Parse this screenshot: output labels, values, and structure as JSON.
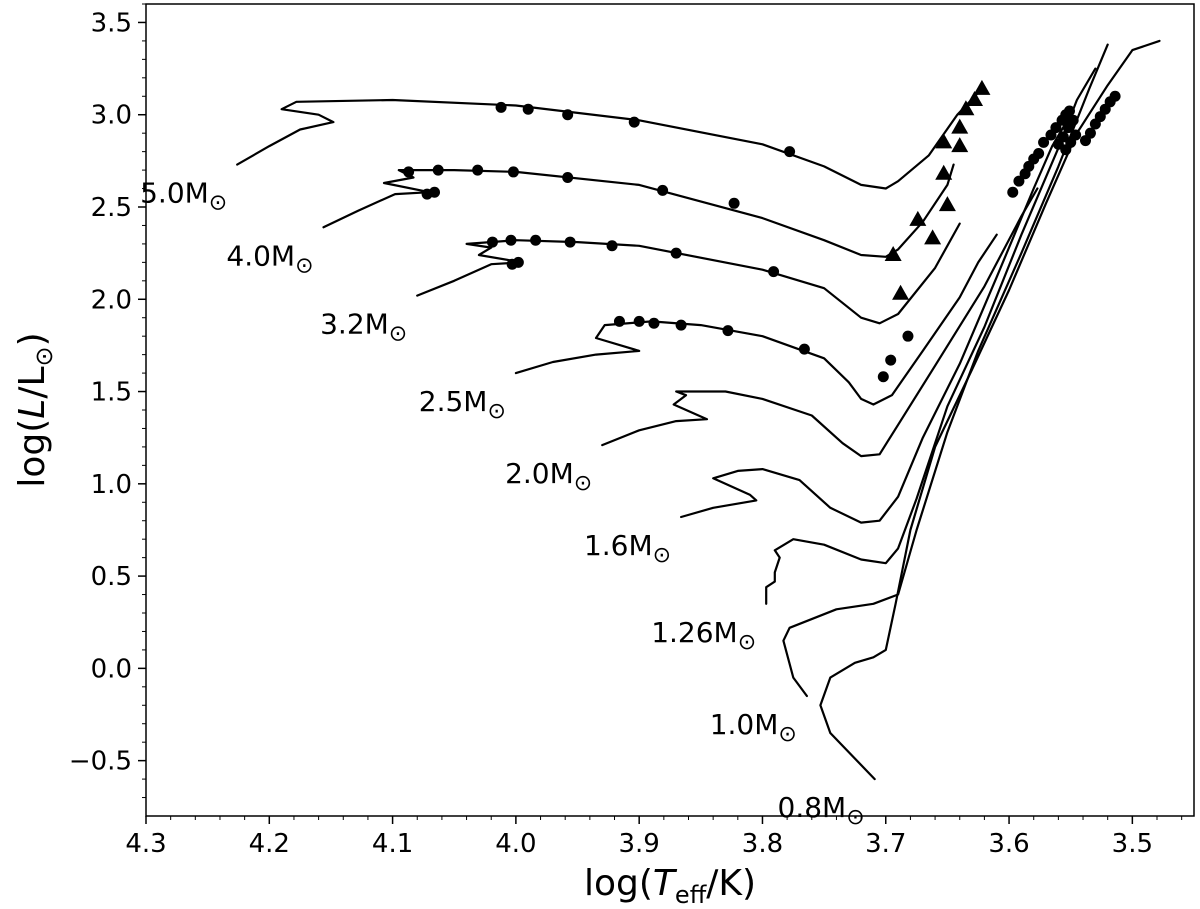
{
  "chart_data": {
    "type": "line",
    "xlabel": {
      "pre": "log(",
      "italic": "T",
      "sub": "eff",
      "post": "/K)"
    },
    "ylabel": {
      "pre": "log(",
      "italic": "L",
      "post": "/L",
      "sun": "⊙",
      "close": ")"
    },
    "xlim": [
      4.3,
      3.45
    ],
    "ylim": [
      -0.8,
      3.6
    ],
    "x_inverted": true,
    "grid": false,
    "legend": "none",
    "x_ticks": [
      "4.3",
      "4.2",
      "4.1",
      "4.0",
      "3.9",
      "3.8",
      "3.7",
      "3.6",
      "3.5"
    ],
    "y_ticks": [
      "−0.5",
      "0.0",
      "0.5",
      "1.0",
      "1.5",
      "2.0",
      "2.5",
      "3.0",
      "3.5"
    ],
    "sun_symbol": "⊙",
    "series": [
      {
        "name": "5.0M⊙",
        "mass_text": "5.0M",
        "points": [
          [
            4.226,
            2.73
          ],
          [
            4.2,
            2.83
          ],
          [
            4.175,
            2.92
          ],
          [
            4.148,
            2.96
          ],
          [
            4.16,
            3.0
          ],
          [
            4.19,
            3.03
          ],
          [
            4.178,
            3.07
          ],
          [
            4.1,
            3.08
          ],
          [
            4.0,
            3.05
          ],
          [
            3.9,
            2.97
          ],
          [
            3.8,
            2.84
          ],
          [
            3.75,
            2.72
          ],
          [
            3.72,
            2.62
          ],
          [
            3.7,
            2.6
          ],
          [
            3.69,
            2.64
          ],
          [
            3.665,
            2.78
          ],
          [
            3.642,
            3.0
          ],
          [
            3.625,
            3.12
          ]
        ],
        "circles": [
          [
            4.012,
            3.04
          ],
          [
            3.99,
            3.03
          ],
          [
            3.958,
            3.0
          ],
          [
            3.904,
            2.96
          ],
          [
            3.778,
            2.8
          ]
        ],
        "triangles": [
          [
            3.622,
            3.14
          ],
          [
            3.628,
            3.08
          ],
          [
            3.635,
            3.03
          ],
          [
            3.64,
            2.93
          ],
          [
            3.653,
            2.85
          ],
          [
            3.64,
            2.83
          ]
        ]
      },
      {
        "name": "4.0M⊙",
        "mass_text": "4.0M",
        "points": [
          [
            4.156,
            2.39
          ],
          [
            4.128,
            2.48
          ],
          [
            4.098,
            2.57
          ],
          [
            4.07,
            2.58
          ],
          [
            4.107,
            2.63
          ],
          [
            4.083,
            2.66
          ],
          [
            4.095,
            2.7
          ],
          [
            4.05,
            2.7
          ],
          [
            4.0,
            2.69
          ],
          [
            3.9,
            2.62
          ],
          [
            3.8,
            2.44
          ],
          [
            3.75,
            2.32
          ],
          [
            3.72,
            2.24
          ],
          [
            3.7,
            2.23
          ],
          [
            3.69,
            2.27
          ],
          [
            3.67,
            2.42
          ],
          [
            3.65,
            2.62
          ],
          [
            3.645,
            2.73
          ]
        ],
        "circles": [
          [
            4.087,
            2.69
          ],
          [
            4.063,
            2.7
          ],
          [
            4.031,
            2.7
          ],
          [
            4.002,
            2.69
          ],
          [
            3.958,
            2.66
          ],
          [
            3.881,
            2.59
          ],
          [
            3.823,
            2.52
          ],
          [
            4.072,
            2.57
          ],
          [
            4.066,
            2.58
          ]
        ],
        "triangles": [
          [
            3.694,
            2.24
          ],
          [
            3.674,
            2.43
          ],
          [
            3.65,
            2.51
          ],
          [
            3.653,
            2.68
          ],
          [
            3.662,
            2.33
          ],
          [
            3.688,
            2.03
          ]
        ]
      },
      {
        "name": "3.2M⊙",
        "mass_text": "3.2M",
        "points": [
          [
            4.08,
            2.02
          ],
          [
            4.05,
            2.1
          ],
          [
            4.02,
            2.19
          ],
          [
            3.995,
            2.2
          ],
          [
            4.03,
            2.24
          ],
          [
            4.02,
            2.28
          ],
          [
            4.04,
            2.3
          ],
          [
            4.0,
            2.32
          ],
          [
            3.95,
            2.31
          ],
          [
            3.9,
            2.29
          ],
          [
            3.8,
            2.16
          ],
          [
            3.75,
            2.06
          ],
          [
            3.72,
            1.9
          ],
          [
            3.705,
            1.87
          ],
          [
            3.69,
            1.92
          ],
          [
            3.66,
            2.17
          ],
          [
            3.64,
            2.41
          ]
        ],
        "circles": [
          [
            4.019,
            2.31
          ],
          [
            4.004,
            2.32
          ],
          [
            3.984,
            2.32
          ],
          [
            3.956,
            2.31
          ],
          [
            3.922,
            2.29
          ],
          [
            3.87,
            2.25
          ],
          [
            3.791,
            2.15
          ],
          [
            3.998,
            2.2
          ],
          [
            4.003,
            2.19
          ]
        ],
        "triangles": []
      },
      {
        "name": "2.5M⊙",
        "mass_text": "2.5M",
        "points": [
          [
            4.0,
            1.6
          ],
          [
            3.97,
            1.66
          ],
          [
            3.935,
            1.7
          ],
          [
            3.9,
            1.72
          ],
          [
            3.935,
            1.79
          ],
          [
            3.928,
            1.86
          ],
          [
            3.89,
            1.88
          ],
          [
            3.85,
            1.86
          ],
          [
            3.8,
            1.8
          ],
          [
            3.75,
            1.68
          ],
          [
            3.73,
            1.55
          ],
          [
            3.72,
            1.46
          ],
          [
            3.71,
            1.43
          ],
          [
            3.695,
            1.48
          ],
          [
            3.67,
            1.72
          ],
          [
            3.64,
            2.01
          ],
          [
            3.625,
            2.2
          ],
          [
            3.61,
            2.35
          ]
        ],
        "circles": [
          [
            3.916,
            1.88
          ],
          [
            3.9,
            1.88
          ],
          [
            3.888,
            1.87
          ],
          [
            3.866,
            1.86
          ],
          [
            3.828,
            1.83
          ],
          [
            3.766,
            1.73
          ],
          [
            3.702,
            1.58
          ],
          [
            3.696,
            1.67
          ],
          [
            3.682,
            1.8
          ]
        ],
        "triangles": []
      },
      {
        "name": "2.0M⊙",
        "mass_text": "2.0M",
        "points": [
          [
            3.93,
            1.21
          ],
          [
            3.9,
            1.29
          ],
          [
            3.87,
            1.34
          ],
          [
            3.845,
            1.35
          ],
          [
            3.872,
            1.43
          ],
          [
            3.862,
            1.48
          ],
          [
            3.87,
            1.5
          ],
          [
            3.83,
            1.5
          ],
          [
            3.8,
            1.46
          ],
          [
            3.76,
            1.37
          ],
          [
            3.735,
            1.22
          ],
          [
            3.72,
            1.15
          ],
          [
            3.705,
            1.16
          ],
          [
            3.69,
            1.32
          ],
          [
            3.66,
            1.64
          ],
          [
            3.62,
            2.07
          ],
          [
            3.59,
            2.45
          ],
          [
            3.577,
            2.6
          ]
        ],
        "circles": [
          [
            3.597,
            2.58
          ],
          [
            3.592,
            2.64
          ],
          [
            3.587,
            2.68
          ],
          [
            3.584,
            2.72
          ],
          [
            3.58,
            2.76
          ],
          [
            3.576,
            2.79
          ],
          [
            3.572,
            2.85
          ]
        ],
        "triangles": []
      },
      {
        "name": "1.6M⊙",
        "mass_text": "1.6M",
        "points": [
          [
            3.866,
            0.82
          ],
          [
            3.84,
            0.87
          ],
          [
            3.805,
            0.91
          ],
          [
            3.81,
            0.94
          ],
          [
            3.84,
            1.03
          ],
          [
            3.82,
            1.07
          ],
          [
            3.8,
            1.08
          ],
          [
            3.77,
            1.02
          ],
          [
            3.745,
            0.87
          ],
          [
            3.72,
            0.79
          ],
          [
            3.705,
            0.8
          ],
          [
            3.69,
            0.93
          ],
          [
            3.67,
            1.25
          ],
          [
            3.64,
            1.65
          ],
          [
            3.61,
            2.12
          ],
          [
            3.58,
            2.6
          ],
          [
            3.565,
            2.83
          ],
          [
            3.55,
            3.0
          ]
        ],
        "circles": [
          [
            3.566,
            2.89
          ],
          [
            3.562,
            2.93
          ],
          [
            3.557,
            2.97
          ],
          [
            3.554,
            3.0
          ],
          [
            3.551,
            3.02
          ]
        ],
        "triangles": []
      },
      {
        "name": "1.26M⊙",
        "mass_text": "1.26M",
        "points": [
          [
            3.797,
            0.35
          ],
          [
            3.797,
            0.44
          ],
          [
            3.79,
            0.47
          ],
          [
            3.79,
            0.52
          ],
          [
            3.786,
            0.6
          ],
          [
            3.79,
            0.64
          ],
          [
            3.775,
            0.7
          ],
          [
            3.75,
            0.67
          ],
          [
            3.72,
            0.59
          ],
          [
            3.7,
            0.57
          ],
          [
            3.69,
            0.65
          ],
          [
            3.675,
            0.92
          ],
          [
            3.65,
            1.42
          ],
          [
            3.62,
            1.85
          ],
          [
            3.59,
            2.35
          ],
          [
            3.56,
            2.82
          ],
          [
            3.545,
            3.08
          ],
          [
            3.53,
            3.25
          ]
        ],
        "circles": [
          [
            3.56,
            2.84
          ],
          [
            3.556,
            2.88
          ],
          [
            3.552,
            2.93
          ],
          [
            3.548,
            2.97
          ]
        ],
        "triangles": []
      },
      {
        "name": "1.0M⊙",
        "mass_text": "1.0M",
        "points": [
          [
            3.764,
            -0.15
          ],
          [
            3.775,
            -0.05
          ],
          [
            3.783,
            0.15
          ],
          [
            3.778,
            0.22
          ],
          [
            3.74,
            0.32
          ],
          [
            3.71,
            0.35
          ],
          [
            3.69,
            0.4
          ],
          [
            3.675,
            0.75
          ],
          [
            3.65,
            1.28
          ],
          [
            3.625,
            1.72
          ],
          [
            3.59,
            2.25
          ],
          [
            3.56,
            2.72
          ],
          [
            3.535,
            3.14
          ],
          [
            3.52,
            3.38
          ]
        ],
        "circles": [
          [
            3.554,
            2.81
          ],
          [
            3.55,
            2.85
          ],
          [
            3.546,
            2.89
          ]
        ],
        "triangles": []
      },
      {
        "name": "0.8M⊙",
        "mass_text": "0.8M",
        "points": [
          [
            3.709,
            -0.6
          ],
          [
            3.745,
            -0.35
          ],
          [
            3.753,
            -0.2
          ],
          [
            3.745,
            -0.05
          ],
          [
            3.725,
            0.03
          ],
          [
            3.71,
            0.06
          ],
          [
            3.7,
            0.1
          ],
          [
            3.692,
            0.35
          ],
          [
            3.68,
            0.75
          ],
          [
            3.66,
            1.2
          ],
          [
            3.63,
            1.62
          ],
          [
            3.6,
            2.05
          ],
          [
            3.57,
            2.52
          ],
          [
            3.545,
            2.9
          ],
          [
            3.52,
            3.16
          ],
          [
            3.5,
            3.35
          ],
          [
            3.478,
            3.4
          ]
        ],
        "circles": [
          [
            3.538,
            2.86
          ],
          [
            3.534,
            2.9
          ],
          [
            3.53,
            2.95
          ],
          [
            3.526,
            2.99
          ],
          [
            3.522,
            3.03
          ],
          [
            3.518,
            3.07
          ],
          [
            3.514,
            3.1
          ]
        ],
        "triangles": []
      }
    ]
  }
}
